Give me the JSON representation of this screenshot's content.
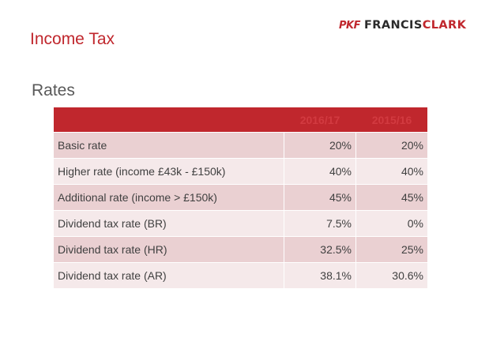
{
  "slide": {
    "title": "Income Tax",
    "subtitle": "Rates"
  },
  "logo": {
    "mark": "PKF",
    "name_part1": "FRANCIS",
    "name_part2": "CLARK"
  },
  "table": {
    "headers": [
      "",
      "2016/17",
      "2015/16"
    ],
    "rows": [
      {
        "label": "Basic rate",
        "y2016": "20%",
        "y2015": "20%"
      },
      {
        "label": "Higher rate (income £43k - £150k)",
        "y2016": "40%",
        "y2015": "40%"
      },
      {
        "label": "Additional rate (income > £150k)",
        "y2016": "45%",
        "y2015": "45%"
      },
      {
        "label": "Dividend tax rate (BR)",
        "y2016": "7.5%",
        "y2015": "0%"
      },
      {
        "label": "Dividend tax rate (HR)",
        "y2016": "32.5%",
        "y2015": "25%"
      },
      {
        "label": "Dividend tax rate (AR)",
        "y2016": "38.1%",
        "y2015": "30.6%"
      }
    ]
  },
  "colors": {
    "accent": "#c0272d",
    "row_dark": "#ead0d2",
    "row_light": "#f5e9ea"
  }
}
